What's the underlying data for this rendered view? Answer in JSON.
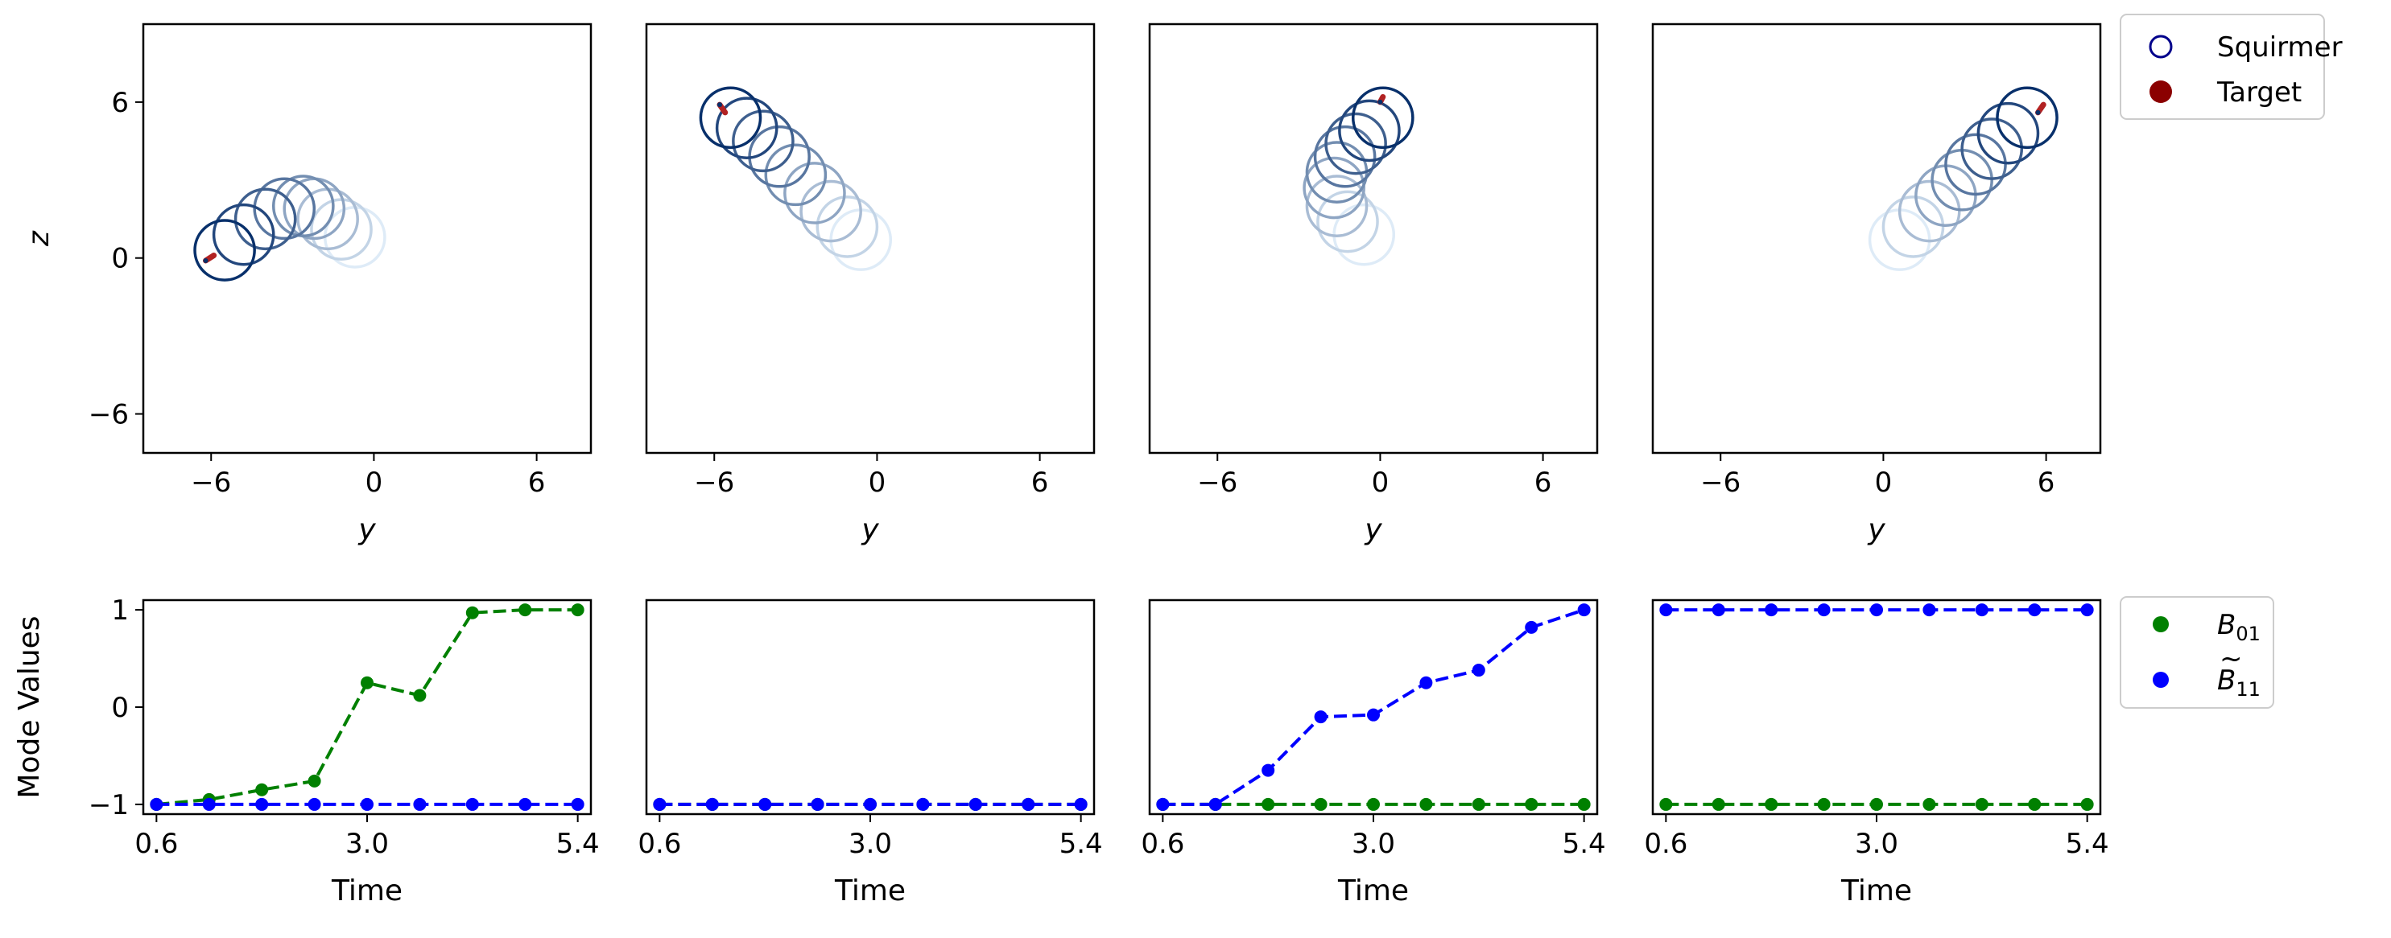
{
  "chart_data": [
    {
      "type": "scatter",
      "panel": "trajectory-1",
      "xlabel": "y",
      "ylabel": "z",
      "xlim": [
        -8.5,
        8
      ],
      "ylim": [
        -7.5,
        9
      ],
      "xticks": [
        -6,
        0,
        6
      ],
      "yticks": [
        -6,
        0,
        6
      ],
      "xtick_labels": [
        "−6",
        "0",
        "6"
      ],
      "ytick_labels": [
        "−6",
        "0",
        "6"
      ],
      "circle_radius": 1.1,
      "circles": [
        [
          -0.7,
          0.8
        ],
        [
          -1.2,
          1.1
        ],
        [
          -1.7,
          1.5
        ],
        [
          -2.2,
          1.9
        ],
        [
          -2.6,
          2.0
        ],
        [
          -3.3,
          1.9
        ],
        [
          -4.0,
          1.5
        ],
        [
          -4.8,
          0.9
        ],
        [
          -5.5,
          0.3
        ]
      ],
      "target": {
        "x1": -6.2,
        "y1": -0.1,
        "x2": -5.9,
        "y2": 0.1
      }
    },
    {
      "type": "scatter",
      "panel": "trajectory-2",
      "xlabel": "y",
      "ylabel": "",
      "xlim": [
        -8.5,
        8
      ],
      "ylim": [
        -7.5,
        9
      ],
      "xticks": [
        -6,
        0,
        6
      ],
      "yticks": [],
      "xtick_labels": [
        "−6",
        "0",
        "6"
      ],
      "ytick_labels": [],
      "circle_radius": 1.1,
      "circles": [
        [
          -0.6,
          0.7
        ],
        [
          -1.1,
          1.2
        ],
        [
          -1.7,
          1.8
        ],
        [
          -2.3,
          2.5
        ],
        [
          -3.0,
          3.2
        ],
        [
          -3.6,
          3.9
        ],
        [
          -4.2,
          4.5
        ],
        [
          -4.8,
          5.0
        ],
        [
          -5.4,
          5.4
        ]
      ],
      "target": {
        "x1": -5.8,
        "y1": 5.9,
        "x2": -5.6,
        "y2": 5.6
      }
    },
    {
      "type": "scatter",
      "panel": "trajectory-3",
      "xlabel": "y",
      "ylabel": "",
      "xlim": [
        -8.5,
        8
      ],
      "ylim": [
        -7.5,
        9
      ],
      "xticks": [
        -6,
        0,
        6
      ],
      "yticks": [],
      "xtick_labels": [
        "−6",
        "0",
        "6"
      ],
      "ytick_labels": [],
      "circle_radius": 1.1,
      "circles": [
        [
          -0.6,
          0.9
        ],
        [
          -1.2,
          1.4
        ],
        [
          -1.6,
          2.0
        ],
        [
          -1.7,
          2.7
        ],
        [
          -1.6,
          3.3
        ],
        [
          -1.3,
          3.9
        ],
        [
          -0.9,
          4.4
        ],
        [
          -0.4,
          4.9
        ],
        [
          0.1,
          5.4
        ]
      ],
      "target": {
        "x1": 0.0,
        "y1": 6.0,
        "x2": 0.1,
        "y2": 6.2
      }
    },
    {
      "type": "scatter",
      "panel": "trajectory-4",
      "xlabel": "y",
      "ylabel": "",
      "xlim": [
        -8.5,
        8
      ],
      "ylim": [
        -7.5,
        9
      ],
      "xticks": [
        -6,
        0,
        6
      ],
      "yticks": [],
      "xtick_labels": [
        "−6",
        "0",
        "6"
      ],
      "ytick_labels": [],
      "circle_radius": 1.1,
      "circles": [
        [
          0.6,
          0.7
        ],
        [
          1.1,
          1.2
        ],
        [
          1.7,
          1.8
        ],
        [
          2.3,
          2.4
        ],
        [
          2.9,
          3.0
        ],
        [
          3.4,
          3.6
        ],
        [
          4.0,
          4.2
        ],
        [
          4.6,
          4.8
        ],
        [
          5.3,
          5.4
        ]
      ],
      "target": {
        "x1": 5.7,
        "y1": 5.6,
        "x2": 5.9,
        "y2": 5.9
      }
    },
    {
      "type": "line",
      "panel": "modes-1",
      "xlabel": "Time",
      "ylabel": "Mode Values",
      "xlim": [
        0.45,
        5.55
      ],
      "ylim": [
        -1.1,
        1.1
      ],
      "xticks": [
        0.6,
        3.0,
        5.4
      ],
      "yticks": [
        -1,
        0,
        1
      ],
      "xtick_labels": [
        "0.6",
        "3.0",
        "5.4"
      ],
      "ytick_labels": [
        "−1",
        "0",
        "1"
      ],
      "x": [
        0.6,
        1.2,
        1.8,
        2.4,
        3.0,
        3.6,
        4.2,
        4.8,
        5.4
      ],
      "series": [
        {
          "name": "B_01",
          "color": "#008000",
          "values": [
            -1.0,
            -0.95,
            -0.85,
            -0.76,
            0.25,
            0.12,
            0.97,
            1.0,
            1.0
          ]
        },
        {
          "name": "B~_11",
          "color": "#0000ff",
          "values": [
            -1,
            -1,
            -1,
            -1,
            -1,
            -1,
            -1,
            -1,
            -1
          ]
        }
      ]
    },
    {
      "type": "line",
      "panel": "modes-2",
      "xlabel": "Time",
      "ylabel": "",
      "xlim": [
        0.45,
        5.55
      ],
      "ylim": [
        -1.1,
        1.1
      ],
      "xticks": [
        0.6,
        3.0,
        5.4
      ],
      "yticks": [],
      "xtick_labels": [
        "0.6",
        "3.0",
        "5.4"
      ],
      "ytick_labels": [],
      "x": [
        0.6,
        1.2,
        1.8,
        2.4,
        3.0,
        3.6,
        4.2,
        4.8,
        5.4
      ],
      "series": [
        {
          "name": "B_01",
          "color": "#008000",
          "values": [
            -1,
            -1,
            -1,
            -1,
            -1,
            -1,
            -1,
            -1,
            -1
          ]
        },
        {
          "name": "B~_11",
          "color": "#0000ff",
          "values": [
            -1,
            -1,
            -1,
            -1,
            -1,
            -1,
            -1,
            -1,
            -1
          ]
        }
      ]
    },
    {
      "type": "line",
      "panel": "modes-3",
      "xlabel": "Time",
      "ylabel": "",
      "xlim": [
        0.45,
        5.55
      ],
      "ylim": [
        -1.1,
        1.1
      ],
      "xticks": [
        0.6,
        3.0,
        5.4
      ],
      "yticks": [],
      "xtick_labels": [
        "0.6",
        "3.0",
        "5.4"
      ],
      "ytick_labels": [],
      "x": [
        0.6,
        1.2,
        1.8,
        2.4,
        3.0,
        3.6,
        4.2,
        4.8,
        5.4
      ],
      "series": [
        {
          "name": "B_01",
          "color": "#008000",
          "values": [
            -1,
            -1,
            -1,
            -1,
            -1,
            -1,
            -1,
            -1,
            -1
          ]
        },
        {
          "name": "B~_11",
          "color": "#0000ff",
          "values": [
            -1.0,
            -1.0,
            -0.65,
            -0.1,
            -0.08,
            0.25,
            0.38,
            0.82,
            1.0
          ]
        }
      ]
    },
    {
      "type": "line",
      "panel": "modes-4",
      "xlabel": "Time",
      "ylabel": "",
      "xlim": [
        0.45,
        5.55
      ],
      "ylim": [
        -1.1,
        1.1
      ],
      "xticks": [
        0.6,
        3.0,
        5.4
      ],
      "yticks": [],
      "xtick_labels": [
        "0.6",
        "3.0",
        "5.4"
      ],
      "ytick_labels": [],
      "x": [
        0.6,
        1.2,
        1.8,
        2.4,
        3.0,
        3.6,
        4.2,
        4.8,
        5.4
      ],
      "series": [
        {
          "name": "B_01",
          "color": "#008000",
          "values": [
            -1,
            -1,
            -1,
            -1,
            -1,
            -1,
            -1,
            -1,
            -1
          ]
        },
        {
          "name": "B~_11",
          "color": "#0000ff",
          "values": [
            1,
            1,
            1,
            1,
            1,
            1,
            1,
            1,
            1
          ]
        }
      ]
    }
  ],
  "legends": {
    "top": [
      {
        "label": "Squirmer",
        "marker": "open-circle",
        "color": "#00008b"
      },
      {
        "label": "Target",
        "marker": "filled-circle",
        "color": "#8b0000"
      }
    ],
    "bottom": [
      {
        "label": "B",
        "sub": "01",
        "tilde": false,
        "marker": "filled-circle",
        "color": "#008000"
      },
      {
        "label": "B",
        "sub": "11",
        "tilde": true,
        "marker": "filled-circle",
        "color": "#0000ff"
      }
    ]
  },
  "colors": {
    "trajectory_oldest": "#deebf7",
    "trajectory_newest": "#08306b",
    "target": "#b22222"
  }
}
